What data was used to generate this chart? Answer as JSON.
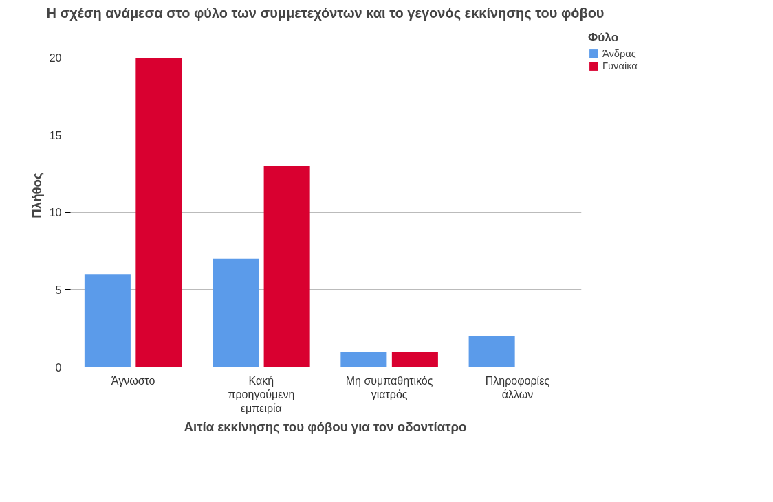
{
  "chart_data": {
    "type": "bar",
    "title": "Η σχέση ανάμεσα στο φύλο των συμμετεχόντων και το γεγονός εκκίνησης του φόβου",
    "xlabel": "Αιτία εκκίνησης του φόβου για τον οδοντίατρο",
    "ylabel": "Πλήθος",
    "legend_title": "Φύλο",
    "categories": [
      "Άγνωστο",
      "Κακή προηγούμενη εμπειρία",
      "Μη συμπαθητικός γιατρός",
      "Πληροφορίες άλλων"
    ],
    "series": [
      {
        "name": "Άνδρας",
        "color": "#5b9bea",
        "values": [
          6,
          7,
          1,
          2
        ]
      },
      {
        "name": "Γυναίκα",
        "color": "#d90030",
        "values": [
          20,
          13,
          1,
          0
        ]
      }
    ],
    "ylim": [
      0,
      22.2
    ],
    "yticks": [
      0,
      5,
      10,
      15,
      20
    ],
    "grid": "y",
    "legend": "top right"
  }
}
